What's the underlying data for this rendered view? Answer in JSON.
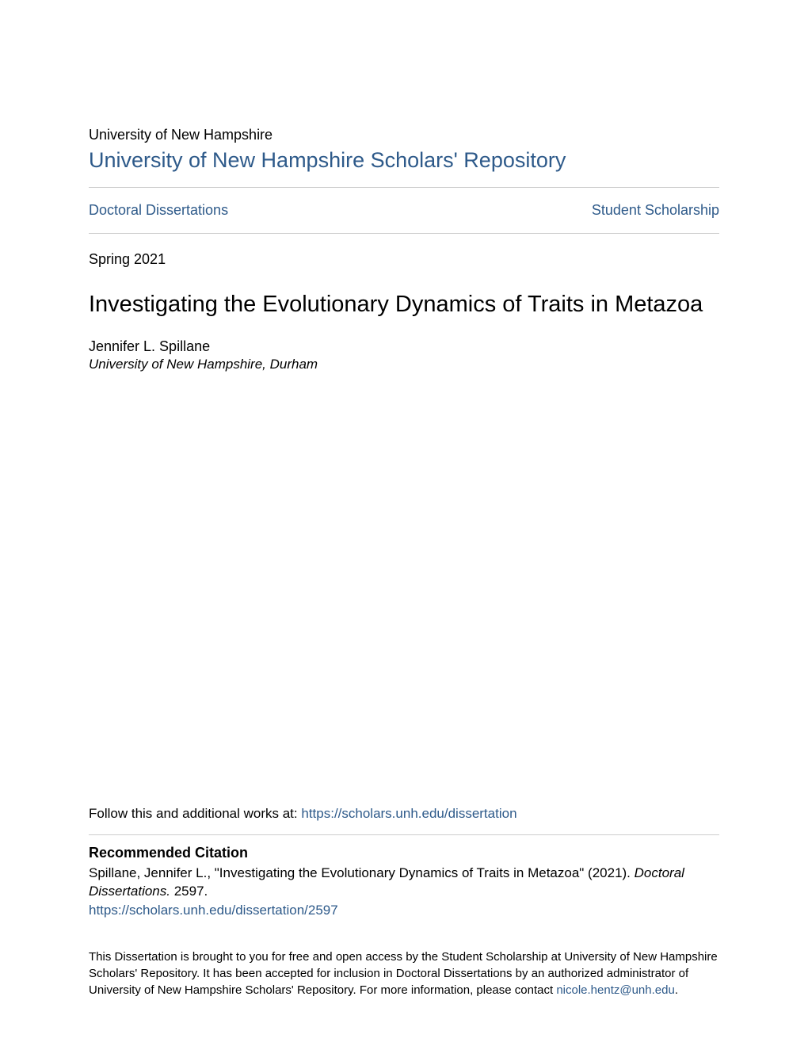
{
  "header": {
    "university_name": "University of New Hampshire",
    "repository_title": "University of New Hampshire Scholars' Repository"
  },
  "nav": {
    "left_link": "Doctoral Dissertations",
    "right_link": "Student Scholarship"
  },
  "metadata": {
    "date": "Spring 2021",
    "title": "Investigating the Evolutionary Dynamics of Traits in Metazoa",
    "author_name": "Jennifer L. Spillane",
    "author_affiliation": "University of New Hampshire, Durham"
  },
  "follow": {
    "prefix": "Follow this and additional works at: ",
    "url": "https://scholars.unh.edu/dissertation"
  },
  "citation": {
    "heading": "Recommended Citation",
    "text_part1": "Spillane, Jennifer L., \"Investigating the Evolutionary Dynamics of Traits in Metazoa\" (2021). ",
    "text_italic": "Doctoral Dissertations.",
    "text_part2": " 2597.",
    "url": "https://scholars.unh.edu/dissertation/2597"
  },
  "footer": {
    "text": "This Dissertation is brought to you for free and open access by the Student Scholarship at University of New Hampshire Scholars' Repository. It has been accepted for inclusion in Doctoral Dissertations by an authorized administrator of University of New Hampshire Scholars' Repository. For more information, please contact ",
    "contact_email": "nicole.hentz@unh.edu",
    "period": "."
  },
  "colors": {
    "link_color": "#2e5a8a",
    "text_color": "#000000",
    "divider_color": "#cccccc",
    "background_color": "#ffffff"
  },
  "typography": {
    "university_name_size": 18,
    "repository_title_size": 27,
    "nav_link_size": 18,
    "date_size": 18,
    "title_size": 29,
    "author_name_size": 18,
    "author_affiliation_size": 17,
    "follow_size": 17,
    "citation_heading_size": 18,
    "citation_text_size": 17,
    "footer_text_size": 15
  }
}
